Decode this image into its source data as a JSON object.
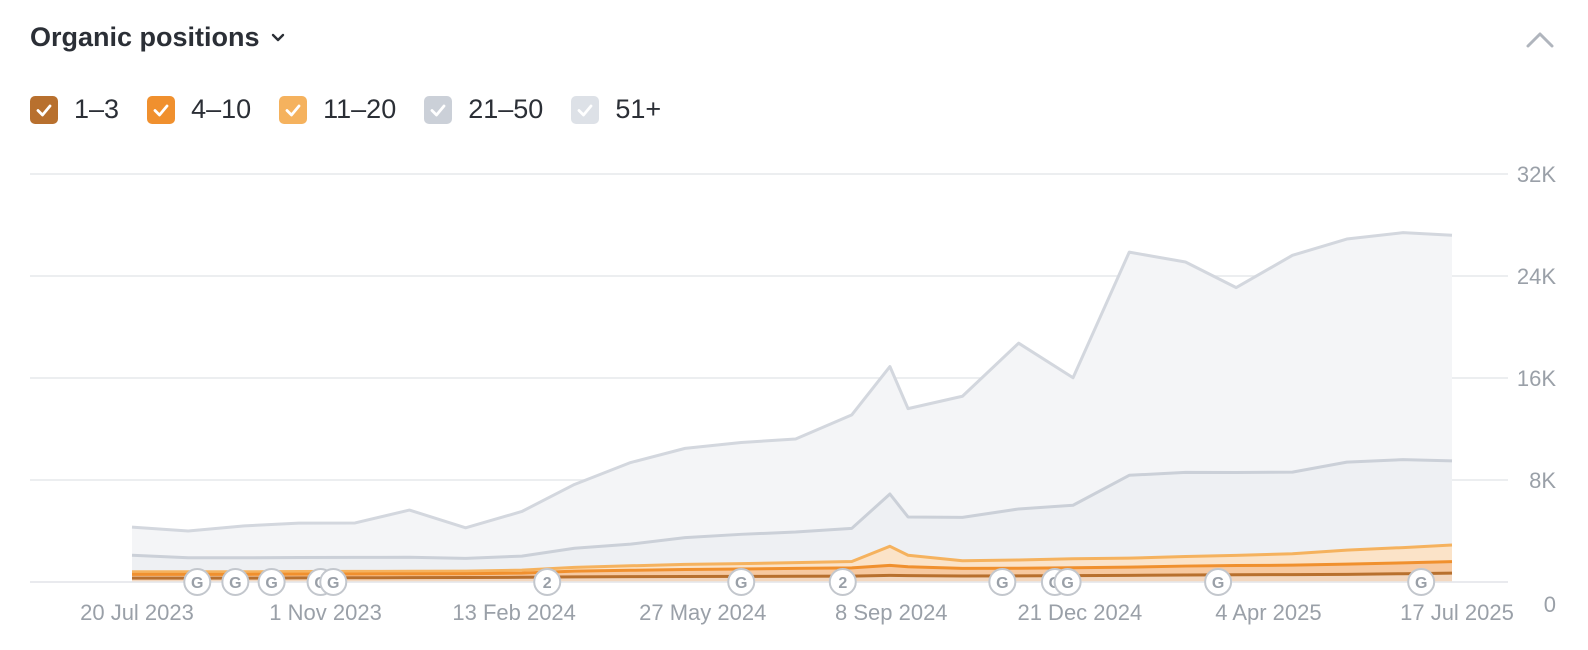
{
  "header": {
    "title": "Organic positions"
  },
  "legend": [
    {
      "label": "1–3",
      "color": "#b8702e",
      "checked": true
    },
    {
      "label": "4–10",
      "color": "#f0902e",
      "checked": true
    },
    {
      "label": "11–20",
      "color": "#f5b25e",
      "checked": true
    },
    {
      "label": "21–50",
      "color": "#cbd0d8",
      "checked": true
    },
    {
      "label": "51+",
      "color": "#dde1e7",
      "checked": true
    }
  ],
  "chart_data": {
    "type": "area",
    "stacked": true,
    "title": "Organic positions",
    "x": [
      "2023-07-20",
      "2023-08-20",
      "2023-09-20",
      "2023-10-20",
      "2023-11-20",
      "2023-12-20",
      "2024-01-20",
      "2024-02-20",
      "2024-03-20",
      "2024-04-20",
      "2024-05-20",
      "2024-06-20",
      "2024-07-20",
      "2024-08-20",
      "2024-09-10",
      "2024-09-20",
      "2024-10-20",
      "2024-11-20",
      "2024-12-20",
      "2025-01-20",
      "2025-02-20",
      "2025-03-20",
      "2025-04-20",
      "2025-05-20",
      "2025-06-20",
      "2025-07-17"
    ],
    "series": [
      {
        "name": "1–3",
        "values": [
          300,
          300,
          300,
          320,
          330,
          340,
          350,
          370,
          400,
          420,
          430,
          440,
          450,
          460,
          520,
          500,
          470,
          480,
          500,
          520,
          550,
          570,
          580,
          600,
          650,
          700
        ]
      },
      {
        "name": "4–10",
        "values": [
          300,
          300,
          300,
          300,
          300,
          300,
          300,
          330,
          450,
          500,
          550,
          580,
          620,
          650,
          780,
          700,
          600,
          600,
          620,
          650,
          700,
          720,
          740,
          800,
          850,
          900
        ]
      },
      {
        "name": "11–20",
        "values": [
          200,
          200,
          200,
          200,
          200,
          200,
          200,
          230,
          300,
          350,
          400,
          420,
          450,
          500,
          1500,
          900,
          600,
          650,
          700,
          700,
          750,
          800,
          900,
          1100,
          1200,
          1300
        ]
      },
      {
        "name": "21–50",
        "values": [
          1300,
          1100,
          1100,
          1100,
          1100,
          1100,
          1000,
          1100,
          1500,
          1700,
          2100,
          2300,
          2400,
          2600,
          4100,
          3000,
          3400,
          4000,
          4200,
          6500,
          6600,
          6500,
          6400,
          6900,
          6900,
          6600
        ]
      },
      {
        "name": "51+",
        "values": [
          2200,
          2100,
          2500,
          2700,
          2700,
          3700,
          2400,
          3500,
          5000,
          6400,
          7000,
          7200,
          7300,
          8900,
          10000,
          8500,
          9500,
          13000,
          10000,
          17500,
          16500,
          14500,
          17000,
          17500,
          17800,
          17700
        ]
      }
    ],
    "y_ticks": [
      "32K",
      "24K",
      "16K",
      "8K",
      "0"
    ],
    "x_ticks": [
      "20 Jul 2023",
      "1 Nov 2023",
      "13 Feb 2024",
      "27 May 2024",
      "8 Sep 2024",
      "21 Dec 2024",
      "4 Apr 2025",
      "17 Jul 2025"
    ],
    "ylim": [
      0,
      32000
    ],
    "grid": true,
    "legend_position": "top-left",
    "annotations": [
      {
        "date": "2023-08-25",
        "label": "G"
      },
      {
        "date": "2023-09-15",
        "label": "G"
      },
      {
        "date": "2023-10-05",
        "label": "G"
      },
      {
        "date": "2023-11-01",
        "label": "G"
      },
      {
        "date": "2023-11-08",
        "label": "G"
      },
      {
        "date": "2024-03-05",
        "label": "2"
      },
      {
        "date": "2024-06-20",
        "label": "G"
      },
      {
        "date": "2024-08-15",
        "label": "2"
      },
      {
        "date": "2024-11-11",
        "label": "G"
      },
      {
        "date": "2024-12-10",
        "label": "G"
      },
      {
        "date": "2024-12-17",
        "label": "G"
      },
      {
        "date": "2025-03-10",
        "label": "G"
      },
      {
        "date": "2025-06-30",
        "label": "G"
      }
    ]
  }
}
